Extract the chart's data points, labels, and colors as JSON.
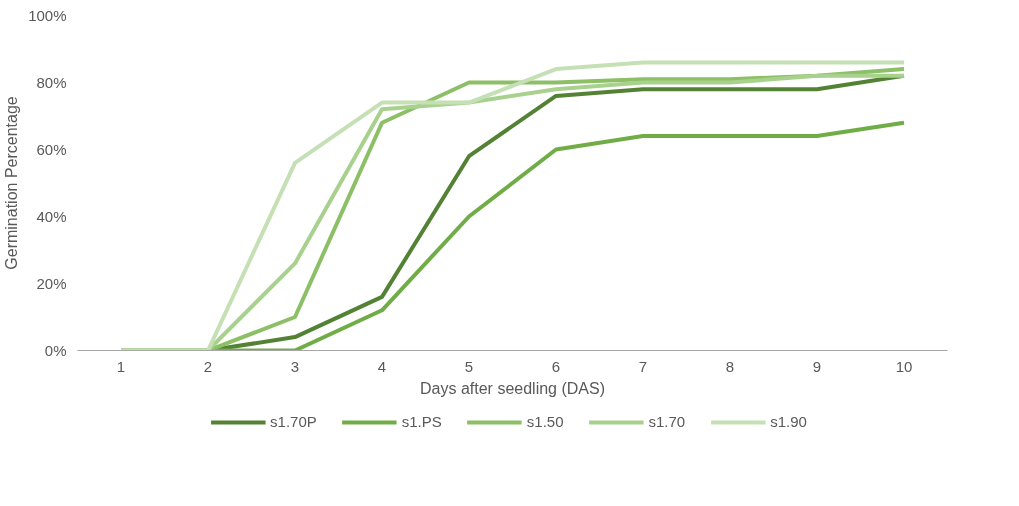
{
  "chart_data": {
    "type": "line",
    "xlabel": "Days after seedling (DAS)",
    "ylabel": "Germination Percentage",
    "categories": [
      "1",
      "2",
      "3",
      "4",
      "5",
      "6",
      "7",
      "8",
      "9",
      "10"
    ],
    "ylim": [
      0,
      100
    ],
    "yticks": [
      {
        "value": 0,
        "label": "0%"
      },
      {
        "value": 20,
        "label": "20%"
      },
      {
        "value": 40,
        "label": "40%"
      },
      {
        "value": 60,
        "label": "60%"
      },
      {
        "value": 80,
        "label": "80%"
      },
      {
        "value": 100,
        "label": "100%"
      }
    ],
    "grid": false,
    "legend": "bottom",
    "marker": "none",
    "line_style": "solid",
    "series": [
      {
        "name": "s1.70P",
        "color": "#548235",
        "values": [
          0,
          0,
          4,
          16,
          58,
          76,
          78,
          78,
          78,
          82
        ]
      },
      {
        "name": "s1.PS",
        "color": "#70ad47",
        "values": [
          0,
          0,
          0,
          12,
          40,
          60,
          64,
          64,
          64,
          68
        ]
      },
      {
        "name": "s1.50",
        "color": "#8cbf66",
        "values": [
          0,
          0,
          10,
          68,
          80,
          80,
          81,
          81,
          82,
          84
        ]
      },
      {
        "name": "s1.70",
        "color": "#a9d18e",
        "values": [
          0,
          0,
          26,
          72,
          74,
          78,
          80,
          80,
          82,
          82
        ]
      },
      {
        "name": "s1.90",
        "color": "#c5e0b4",
        "values": [
          0,
          0,
          56,
          74,
          74,
          84,
          86,
          86,
          86,
          86
        ]
      }
    ]
  }
}
